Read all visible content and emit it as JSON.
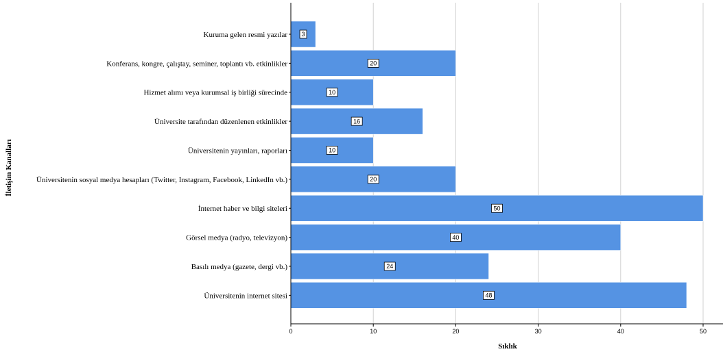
{
  "chart_data": {
    "type": "bar",
    "orientation": "horizontal",
    "title": "",
    "xlabel": "Sıklık",
    "ylabel": "İletişim Kanalları",
    "xlim": [
      0,
      52
    ],
    "xticks": [
      0,
      10,
      20,
      30,
      40,
      50
    ],
    "grid": "vertical",
    "legend": "none",
    "bar_color": "#5593e3",
    "categories": [
      "Kuruma gelen resmi yazılar",
      "Konferans, kongre, çalıştay, seminer, toplantı vb. etkinlikler",
      "Hizmet alımı veya kurumsal iş birliği sürecinde",
      "Üniversite tarafından düzenlenen etkinlikler",
      "Üniversitenin yayınları, raporları",
      "Üniversitenin sosyal medya hesapları (Twitter, Instagram, Facebook, LinkedIn vb.)",
      "İnternet haber ve bilgi siteleri",
      "Görsel medya (radyo, televizyon)",
      "Basılı medya (gazete, dergi vb.)",
      "Üniversitenin internet sitesi"
    ],
    "values": [
      3,
      20,
      10,
      16,
      10,
      20,
      50,
      40,
      24,
      48
    ]
  }
}
